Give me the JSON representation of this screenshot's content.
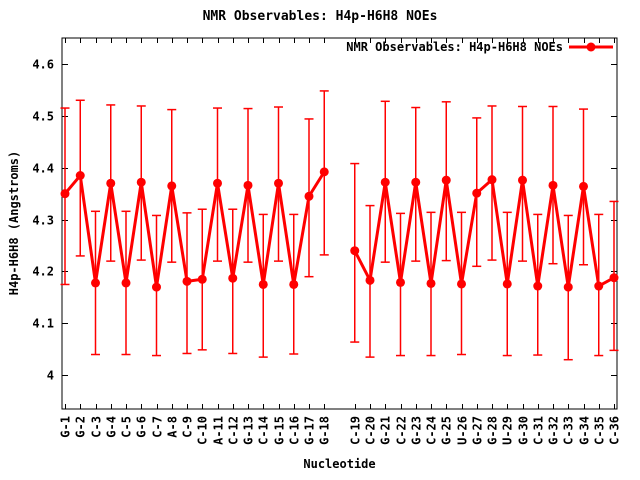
{
  "title": "NMR Observables: H4p-H6H8 NOEs",
  "legend": {
    "label": "NMR Observables: H4p-H6H8 NOEs"
  },
  "colors": {
    "series": "#ff0000",
    "axis": "#000000",
    "background": "#ffffff"
  },
  "chart_data": {
    "type": "line",
    "title": "NMR Observables: H4p-H6H8 NOEs",
    "xlabel": "Nucleotide",
    "ylabel": "H4p-H6H8 (Angstroms)",
    "legend_entries": [
      "NMR Observables: H4p-H6H8 NOEs"
    ],
    "legend_position": "top-right-inside",
    "grid": false,
    "marker": "filled-circle",
    "error_bars": true,
    "ylim": [
      3.935,
      4.65
    ],
    "x_slot_count": 37,
    "note": "x slot 19 is empty: line breaks between G-18 and C-19",
    "yticks": [
      {
        "v": 4,
        "label": "4"
      },
      {
        "v": 4.1,
        "label": "4.1"
      },
      {
        "v": 4.2,
        "label": "4.2"
      },
      {
        "v": 4.3,
        "label": "4.3"
      },
      {
        "v": 4.4,
        "label": "4.4"
      },
      {
        "v": 4.5,
        "label": "4.5"
      },
      {
        "v": 4.6,
        "label": "4.6"
      }
    ],
    "points": [
      {
        "label": "G-1",
        "slot": 1,
        "seg": 1,
        "y": 4.35,
        "lo": 4.175,
        "hi": 4.515
      },
      {
        "label": "G-2",
        "slot": 2,
        "seg": 1,
        "y": 4.385,
        "lo": 4.23,
        "hi": 4.53
      },
      {
        "label": "C-3",
        "slot": 3,
        "seg": 1,
        "y": 4.178,
        "lo": 4.04,
        "hi": 4.316
      },
      {
        "label": "G-4",
        "slot": 4,
        "seg": 1,
        "y": 4.37,
        "lo": 4.22,
        "hi": 4.521
      },
      {
        "label": "C-5",
        "slot": 5,
        "seg": 1,
        "y": 4.178,
        "lo": 4.04,
        "hi": 4.316
      },
      {
        "label": "G-6",
        "slot": 6,
        "seg": 1,
        "y": 4.372,
        "lo": 4.222,
        "hi": 4.519
      },
      {
        "label": "C-7",
        "slot": 7,
        "seg": 1,
        "y": 4.17,
        "lo": 4.038,
        "hi": 4.308
      },
      {
        "label": "A-8",
        "slot": 8,
        "seg": 1,
        "y": 4.365,
        "lo": 4.218,
        "hi": 4.512
      },
      {
        "label": "C-9",
        "slot": 9,
        "seg": 1,
        "y": 4.181,
        "lo": 4.042,
        "hi": 4.313
      },
      {
        "label": "C-10",
        "slot": 10,
        "seg": 1,
        "y": 4.185,
        "lo": 4.049,
        "hi": 4.32
      },
      {
        "label": "A-11",
        "slot": 11,
        "seg": 1,
        "y": 4.37,
        "lo": 4.22,
        "hi": 4.515
      },
      {
        "label": "C-12",
        "slot": 12,
        "seg": 1,
        "y": 4.187,
        "lo": 4.042,
        "hi": 4.32
      },
      {
        "label": "G-13",
        "slot": 13,
        "seg": 1,
        "y": 4.366,
        "lo": 4.218,
        "hi": 4.514
      },
      {
        "label": "C-14",
        "slot": 14,
        "seg": 1,
        "y": 4.175,
        "lo": 4.035,
        "hi": 4.31
      },
      {
        "label": "G-15",
        "slot": 15,
        "seg": 1,
        "y": 4.37,
        "lo": 4.22,
        "hi": 4.517
      },
      {
        "label": "C-16",
        "slot": 16,
        "seg": 1,
        "y": 4.175,
        "lo": 4.041,
        "hi": 4.31
      },
      {
        "label": "G-17",
        "slot": 17,
        "seg": 1,
        "y": 4.345,
        "lo": 4.19,
        "hi": 4.494
      },
      {
        "label": "G-18",
        "slot": 18,
        "seg": 1,
        "y": 4.392,
        "lo": 4.232,
        "hi": 4.548
      },
      {
        "label": "C-19",
        "slot": 20,
        "seg": 2,
        "y": 4.24,
        "lo": 4.064,
        "hi": 4.408
      },
      {
        "label": "C-20",
        "slot": 21,
        "seg": 2,
        "y": 4.183,
        "lo": 4.035,
        "hi": 4.327
      },
      {
        "label": "G-21",
        "slot": 22,
        "seg": 2,
        "y": 4.372,
        "lo": 4.218,
        "hi": 4.528
      },
      {
        "label": "C-22",
        "slot": 23,
        "seg": 2,
        "y": 4.179,
        "lo": 4.038,
        "hi": 4.312
      },
      {
        "label": "G-23",
        "slot": 24,
        "seg": 2,
        "y": 4.372,
        "lo": 4.22,
        "hi": 4.516
      },
      {
        "label": "C-24",
        "slot": 25,
        "seg": 2,
        "y": 4.177,
        "lo": 4.038,
        "hi": 4.314
      },
      {
        "label": "G-25",
        "slot": 26,
        "seg": 2,
        "y": 4.376,
        "lo": 4.221,
        "hi": 4.527
      },
      {
        "label": "U-26",
        "slot": 27,
        "seg": 2,
        "y": 4.176,
        "lo": 4.04,
        "hi": 4.314
      },
      {
        "label": "G-27",
        "slot": 28,
        "seg": 2,
        "y": 4.351,
        "lo": 4.21,
        "hi": 4.496
      },
      {
        "label": "G-28",
        "slot": 29,
        "seg": 2,
        "y": 4.377,
        "lo": 4.222,
        "hi": 4.519
      },
      {
        "label": "U-29",
        "slot": 30,
        "seg": 2,
        "y": 4.176,
        "lo": 4.038,
        "hi": 4.314
      },
      {
        "label": "G-30",
        "slot": 31,
        "seg": 2,
        "y": 4.376,
        "lo": 4.22,
        "hi": 4.518
      },
      {
        "label": "C-31",
        "slot": 32,
        "seg": 2,
        "y": 4.172,
        "lo": 4.039,
        "hi": 4.31
      },
      {
        "label": "G-32",
        "slot": 33,
        "seg": 2,
        "y": 4.366,
        "lo": 4.215,
        "hi": 4.518
      },
      {
        "label": "C-33",
        "slot": 34,
        "seg": 2,
        "y": 4.17,
        "lo": 4.03,
        "hi": 4.308
      },
      {
        "label": "G-34",
        "slot": 35,
        "seg": 2,
        "y": 4.364,
        "lo": 4.213,
        "hi": 4.513
      },
      {
        "label": "C-35",
        "slot": 36,
        "seg": 2,
        "y": 4.172,
        "lo": 4.038,
        "hi": 4.31
      },
      {
        "label": "C-36",
        "slot": 37,
        "seg": 2,
        "y": 4.188,
        "lo": 4.048,
        "hi": 4.335
      }
    ]
  }
}
